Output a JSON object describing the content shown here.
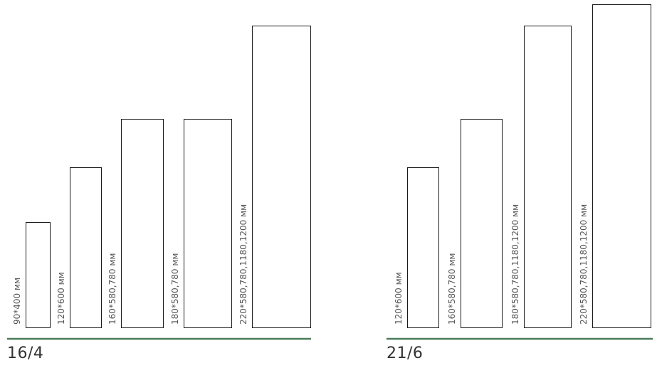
{
  "colors": {
    "baseline": "#4a7c59",
    "outline": "#1a1a1a",
    "label": "#555555",
    "title": "#333333"
  },
  "groups": [
    {
      "title": "16/4",
      "items": [
        {
          "label": "90*400 мм",
          "level": 0.35
        },
        {
          "label": "120*600 мм",
          "level": 0.53
        },
        {
          "label": "160*580,780 мм",
          "level": 0.69
        },
        {
          "label": "180*580,780 мм",
          "level": 0.69
        },
        {
          "label": "220*580,780,1180,1200 мм",
          "level": 1.0
        }
      ]
    },
    {
      "title": "21/6",
      "items": [
        {
          "label": "120*600 мм",
          "level": 0.53
        },
        {
          "label": "160*580,780 мм",
          "level": 0.69
        },
        {
          "label": "180*580,780,1180,1200 мм",
          "level": 1.0
        },
        {
          "label": "220*580,780,1180,1200 мм",
          "level": 1.07
        }
      ]
    }
  ]
}
